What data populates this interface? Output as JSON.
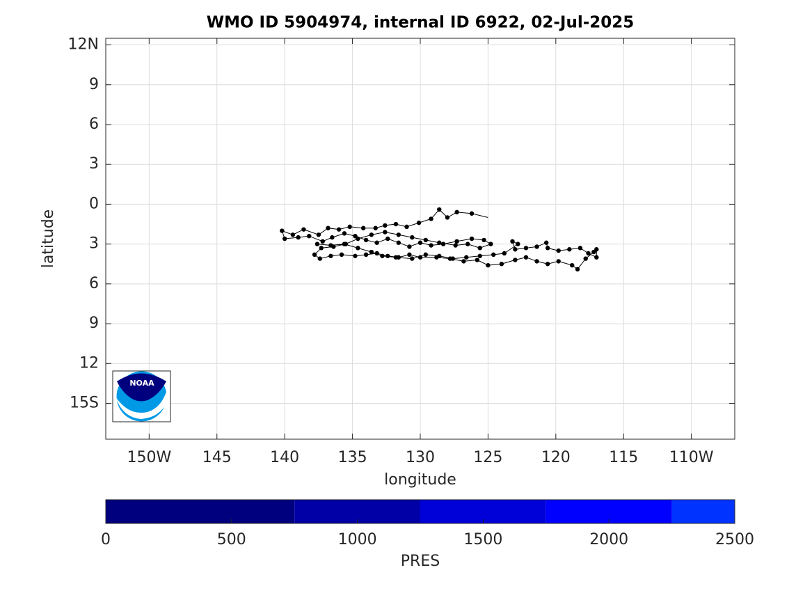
{
  "chart_data": {
    "type": "line",
    "title": "WMO ID 5904974, internal ID 6922, 02-Jul-2025",
    "xlabel": "longitude",
    "ylabel": "latitude",
    "logo_text": "NOAA",
    "color": "#000000",
    "grid": true,
    "xlim": [
      -153.2,
      -106.8
    ],
    "ylim": [
      -17.7,
      12.5
    ],
    "xticks": [
      {
        "value": -150,
        "label": "150W"
      },
      {
        "value": -145,
        "label": "145"
      },
      {
        "value": -140,
        "label": "140"
      },
      {
        "value": -135,
        "label": "135"
      },
      {
        "value": -130,
        "label": "130"
      },
      {
        "value": -125,
        "label": "125"
      },
      {
        "value": -120,
        "label": "120"
      },
      {
        "value": -115,
        "label": "115"
      },
      {
        "value": -110,
        "label": "110W"
      }
    ],
    "yticks": [
      {
        "value": 12,
        "label": "12N"
      },
      9,
      6,
      3,
      0,
      {
        "value": -3,
        "label": "3"
      },
      {
        "value": -6,
        "label": "6"
      },
      {
        "value": -9,
        "label": "9"
      },
      {
        "value": -12,
        "label": "12"
      },
      {
        "value": -15,
        "label": "15S"
      }
    ],
    "x": [
      -125,
      -126.2,
      -127.3,
      -128.0,
      -128.6,
      -129.2,
      -130.1,
      -131.0,
      -131.8,
      -132.6,
      -133.3,
      -134.2,
      -135.2,
      -136.0,
      -136.8,
      -137.5,
      -138.6,
      -139.4,
      -140.2,
      -140.0,
      -139.0,
      -138.2,
      -137.2,
      -136.5,
      -135.6,
      -134.8,
      -134.0,
      -133.2,
      -132.4,
      -131.6,
      -130.8,
      -130.0,
      -129.2,
      -128.3,
      -127.3,
      -126.2,
      -125.3,
      -124.8,
      -125.6,
      -126.5,
      -127.4,
      -128.6,
      -129.6,
      -130.6,
      -131.6,
      -132.6,
      -133.6,
      -134.6,
      -135.5,
      -136.4,
      -137.3,
      -137.8,
      -137.4,
      -136.6,
      -135.8,
      -134.8,
      -134.0,
      -133.2,
      -132.4,
      -131.6,
      -130.8,
      -130.0,
      -128.8,
      -127.8,
      -126.8,
      -125.8,
      -125.0,
      -124.0,
      -123.0,
      -122.2,
      -121.4,
      -120.6,
      -119.8,
      -118.8,
      -118.4,
      -117.8,
      -117.2,
      -117.0,
      -117.0,
      -117.6,
      -118.2,
      -119.0,
      -119.8,
      -120.6,
      -120.7,
      -121.4,
      -122.2,
      -123.0,
      -123.2,
      -122.8,
      -123.8,
      -124.6,
      -125.6,
      -126.6,
      -127.6,
      -128.6,
      -129.6,
      -130.6,
      -131.8,
      -132.8,
      -133.6,
      -134.6,
      -135.6,
      -136.6,
      -137.6
    ],
    "y": [
      -1.0,
      -0.7,
      -0.6,
      -1.0,
      -0.4,
      -1.1,
      -1.4,
      -1.7,
      -1.5,
      -1.6,
      -1.8,
      -1.8,
      -1.7,
      -1.9,
      -1.8,
      -2.3,
      -1.9,
      -2.3,
      -2.0,
      -2.6,
      -2.5,
      -2.4,
      -2.8,
      -2.5,
      -2.2,
      -2.4,
      -2.7,
      -2.9,
      -2.6,
      -2.9,
      -3.2,
      -2.9,
      -3.1,
      -3.0,
      -2.8,
      -2.6,
      -2.7,
      -3.0,
      -3.3,
      -3.0,
      -3.1,
      -2.9,
      -2.7,
      -2.5,
      -2.3,
      -2.1,
      -2.3,
      -2.6,
      -3.0,
      -3.2,
      -3.3,
      -3.8,
      -4.1,
      -3.9,
      -3.8,
      -3.9,
      -3.8,
      -3.7,
      -3.9,
      -4.0,
      -3.8,
      -4.0,
      -4.0,
      -4.1,
      -4.3,
      -4.2,
      -4.6,
      -4.5,
      -4.2,
      -4.0,
      -4.3,
      -4.5,
      -4.3,
      -4.6,
      -4.9,
      -4.1,
      -3.6,
      -3.4,
      -4.0,
      -3.7,
      -3.3,
      -3.4,
      -3.5,
      -3.3,
      -2.9,
      -3.2,
      -3.3,
      -3.4,
      -2.8,
      -3.0,
      -3.7,
      -3.8,
      -3.9,
      -4.0,
      -4.1,
      -3.9,
      -3.8,
      -4.1,
      -4.0,
      -3.9,
      -3.6,
      -3.3,
      -3.0,
      -3.1,
      -3.0
    ],
    "colorbar": {
      "label": "PRES",
      "lim": [
        0,
        2500
      ],
      "ticks": [
        0,
        500,
        1000,
        1500,
        2000,
        2500
      ],
      "bounds": [
        0,
        750,
        1250,
        1750,
        2250,
        2500
      ],
      "colors": [
        "#00007f",
        "#0000a6",
        "#0000d9",
        "#0000ff",
        "#0033ff"
      ]
    }
  }
}
